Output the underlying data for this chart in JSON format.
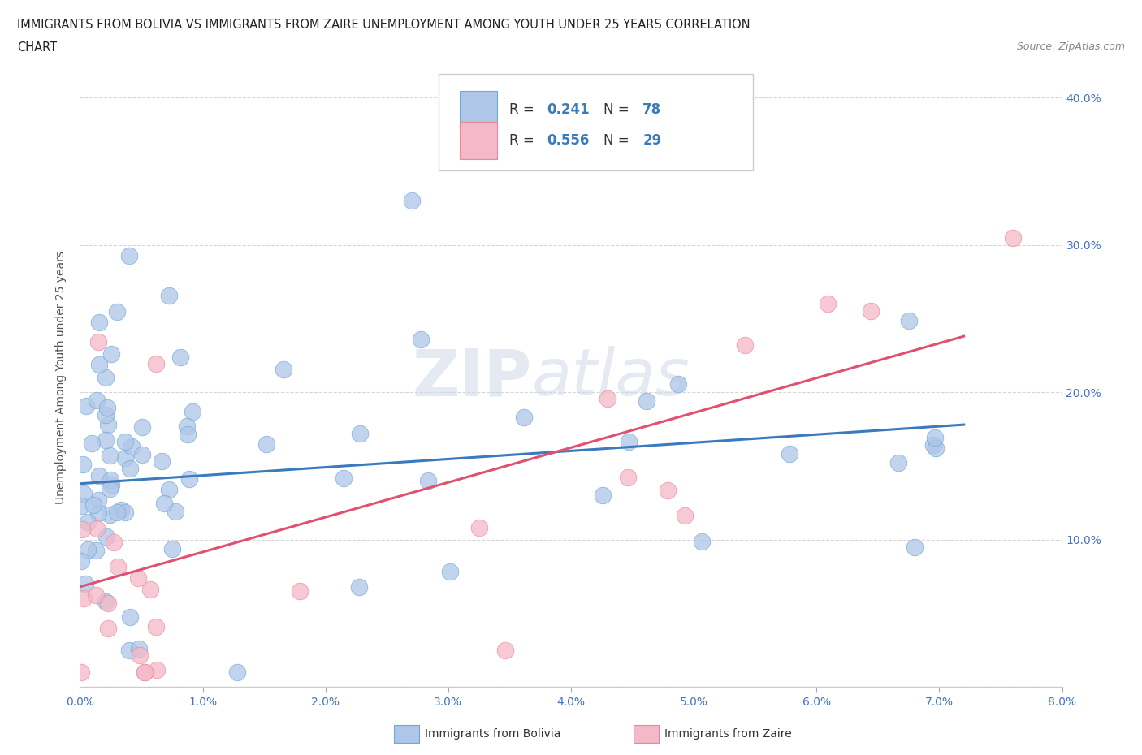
{
  "title_line1": "IMMIGRANTS FROM BOLIVIA VS IMMIGRANTS FROM ZAIRE UNEMPLOYMENT AMONG YOUTH UNDER 25 YEARS CORRELATION",
  "title_line2": "CHART",
  "source_text": "Source: ZipAtlas.com",
  "ylabel": "Unemployment Among Youth under 25 years",
  "xlim": [
    0.0,
    0.08
  ],
  "ylim": [
    0.0,
    0.42
  ],
  "xticks": [
    0.0,
    0.01,
    0.02,
    0.03,
    0.04,
    0.05,
    0.06,
    0.07,
    0.08
  ],
  "xticklabels": [
    "0.0%",
    "1.0%",
    "2.0%",
    "3.0%",
    "4.0%",
    "5.0%",
    "6.0%",
    "7.0%",
    "8.0%"
  ],
  "yticks": [
    0.0,
    0.1,
    0.2,
    0.3,
    0.4
  ],
  "yticklabels_right": [
    "",
    "10.0%",
    "20.0%",
    "30.0%",
    "40.0%"
  ],
  "bolivia_color": "#aec6e8",
  "zaire_color": "#f4b8c8",
  "bolivia_edge_color": "#6fa8d6",
  "zaire_edge_color": "#e8889a",
  "bolivia_line_color": "#3a7abf",
  "zaire_line_color": "#e05070",
  "R_bolivia": 0.241,
  "N_bolivia": 78,
  "R_zaire": 0.556,
  "N_zaire": 29,
  "watermark_zip": "ZIP",
  "watermark_atlas": "atlas",
  "bolivia_trend_x": [
    0.0,
    0.072
  ],
  "bolivia_trend_y": [
    0.138,
    0.178
  ],
  "zaire_trend_x": [
    0.0,
    0.072
  ],
  "zaire_trend_y": [
    0.068,
    0.238
  ],
  "background_color": "#ffffff",
  "grid_color": "#cccccc",
  "tick_label_color": "#4472c4",
  "ylabel_color": "#555555"
}
